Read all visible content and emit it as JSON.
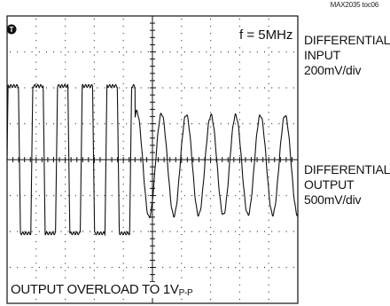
{
  "chart_tag": "MAX2035 toc06",
  "frequency_label": "f = 5MHz",
  "channels": [
    {
      "lines": [
        "DIFFERENTIAL",
        "INPUT",
        "200mV/div"
      ]
    },
    {
      "lines": [
        "DIFFERENTIAL",
        "OUTPUT",
        "500mV/div"
      ]
    }
  ],
  "annotation": {
    "text": "OUTPUT OVERLOAD TO 1V",
    "subscript": "P-P"
  },
  "chart_data": {
    "type": "line",
    "title": "",
    "grid": true,
    "x_divisions": 10,
    "y_divisions": 8,
    "trigger_marker": "T",
    "series": [
      {
        "name": "DIFFERENTIAL INPUT",
        "scale": "200mV/div",
        "frequency": "5MHz",
        "cycles_before_stop": 4,
        "amplitude_div": 0.6,
        "center_div": 6.7,
        "burst_end_x_div": 3.4
      },
      {
        "name": "DIFFERENTIAL OUTPUT",
        "scale": "500mV/div",
        "clipped_region_end_x_div": 4.4,
        "clip_level_div": 2.05,
        "ring_down_amplitude_div": 1.5,
        "center_div": 0.45
      }
    ],
    "annotation": "OUTPUT OVERLOAD TO 1VP-P"
  }
}
